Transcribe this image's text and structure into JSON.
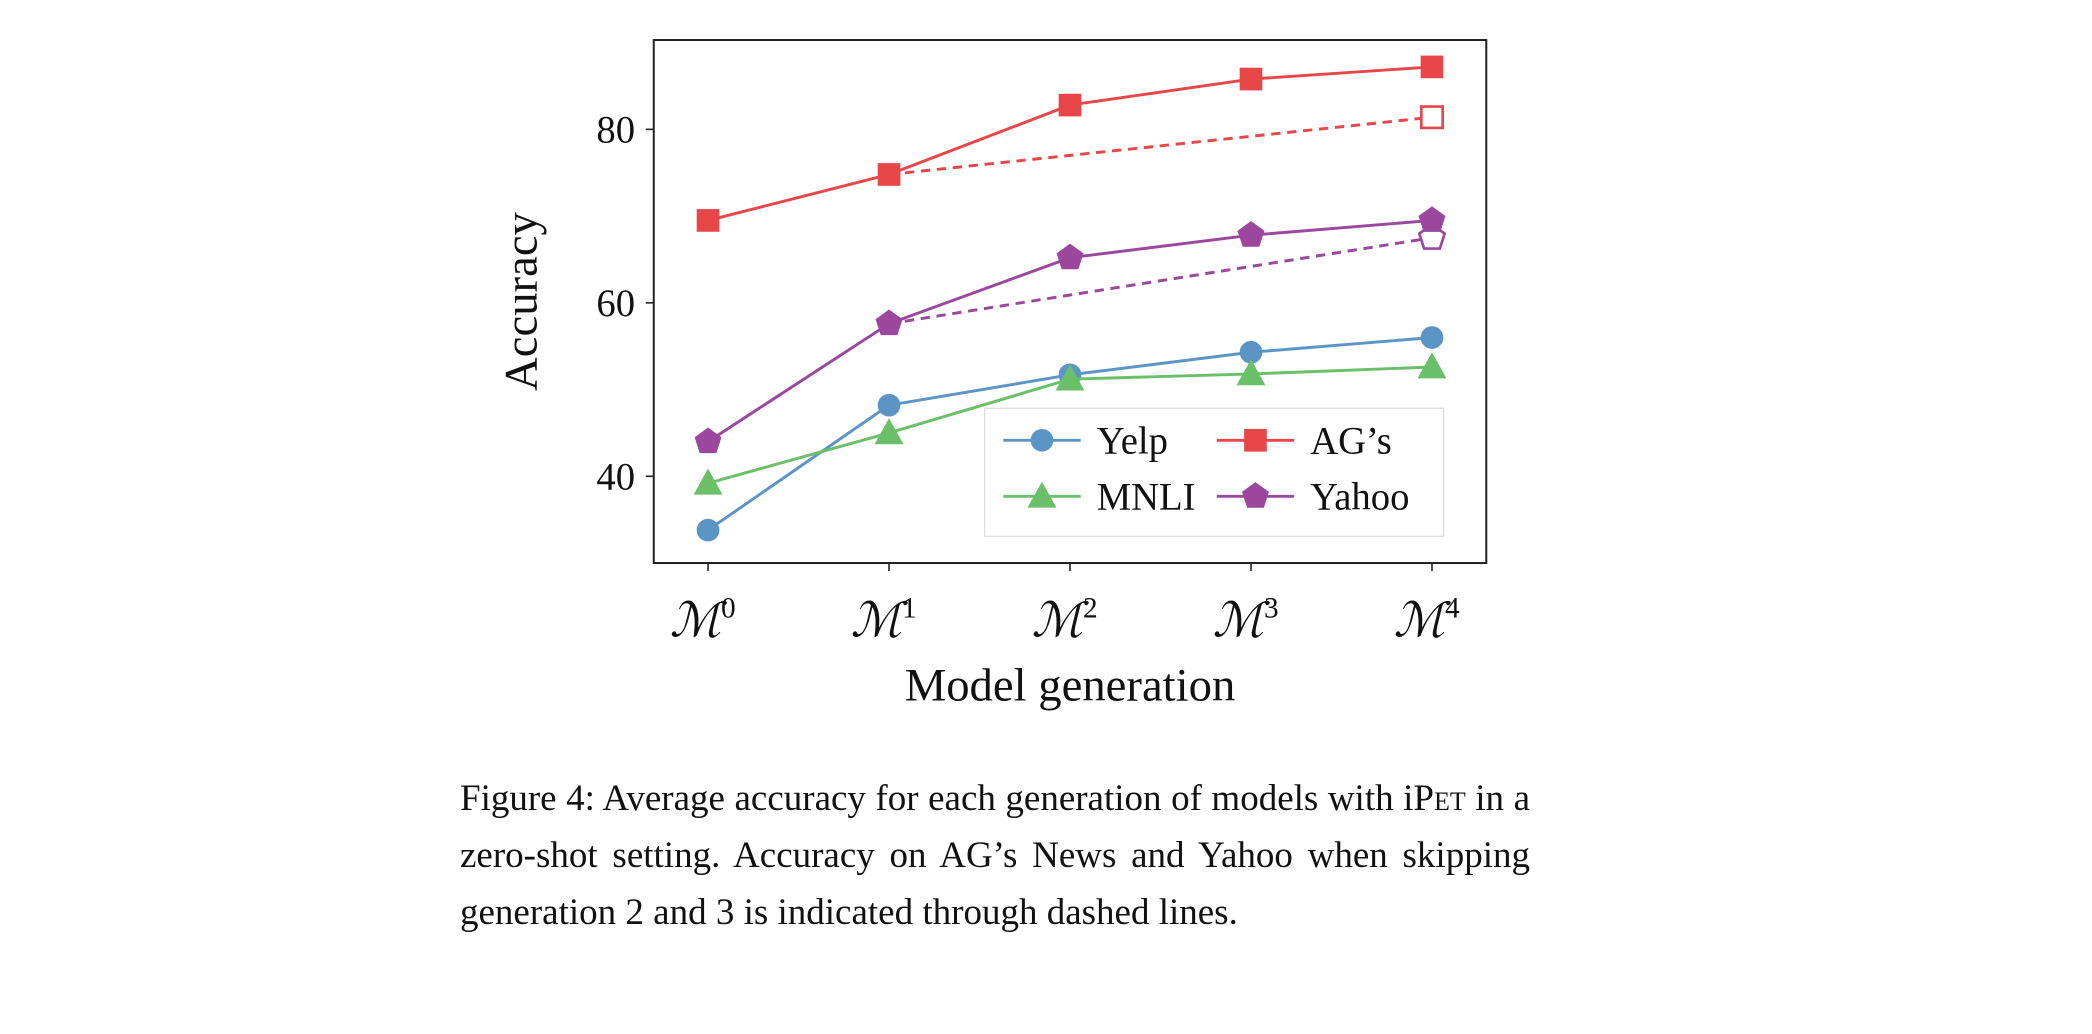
{
  "chart_data": {
    "type": "line",
    "xlabel": "Model generation",
    "ylabel": "Accuracy",
    "categories": [
      {
        "base": "ℳ",
        "sup": "0"
      },
      {
        "base": "ℳ",
        "sup": "1"
      },
      {
        "base": "ℳ",
        "sup": "2"
      },
      {
        "base": "ℳ",
        "sup": "3"
      },
      {
        "base": "ℳ",
        "sup": "4"
      }
    ],
    "yticks": [
      40,
      60,
      80
    ],
    "ylim": [
      30,
      90.3
    ],
    "grid": false,
    "legend_position": "lower-right",
    "series": [
      {
        "name": "Yelp",
        "color": "#5b95c6",
        "marker": "circle",
        "values": [
          33.8,
          48.2,
          51.7,
          54.3,
          56.0
        ]
      },
      {
        "name": "AG’s",
        "color": "#e8474a",
        "marker": "square",
        "values": [
          69.5,
          74.8,
          82.8,
          85.8,
          87.2
        ],
        "skip_values": [
          null,
          74.8,
          null,
          null,
          81.4
        ]
      },
      {
        "name": "MNLI",
        "color": "#6abf69",
        "marker": "triangle",
        "values": [
          39.2,
          45.0,
          51.2,
          51.8,
          52.6
        ]
      },
      {
        "name": "Yahoo",
        "color": "#9b479e",
        "marker": "pentagon",
        "values": [
          44.0,
          57.6,
          65.2,
          67.8,
          69.5
        ],
        "skip_values": [
          null,
          57.6,
          null,
          null,
          67.5
        ]
      }
    ]
  },
  "caption": {
    "prefix": "Figure 4: Average accuracy for each generation of models with i",
    "smallcaps": "Pet",
    "suffix": " in a zero-shot setting. Accuracy on AG’s News and Yahoo when skipping generation 2 and 3 is indicated through dashed lines."
  }
}
